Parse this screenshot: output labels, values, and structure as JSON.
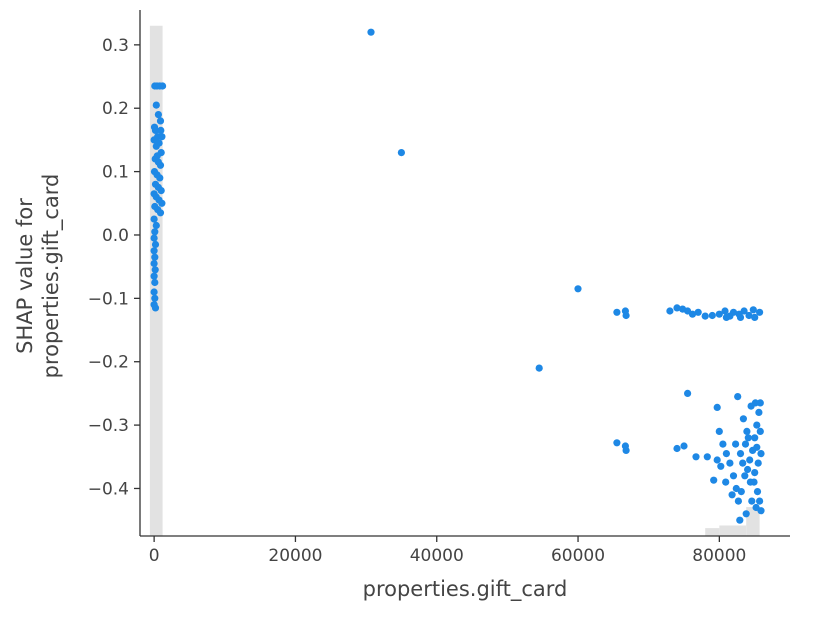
{
  "chart_data": {
    "type": "scatter",
    "title": "",
    "xlabel": "properties.gift_card",
    "ylabel_lines": [
      "SHAP value for",
      "properties.gift_card"
    ],
    "xlim": [
      -2000,
      90000
    ],
    "ylim": [
      -0.475,
      0.355
    ],
    "x_ticks": [
      0,
      20000,
      40000,
      60000,
      80000
    ],
    "x_tick_labels": [
      "0",
      "20000",
      "40000",
      "60000",
      "80000"
    ],
    "y_ticks": [
      0.3,
      0.2,
      0.1,
      0.0,
      -0.1,
      -0.2,
      -0.3,
      -0.4
    ],
    "y_tick_labels": [
      "0.3",
      "0.2",
      "0.1",
      "0.0",
      "−0.1",
      "−0.2",
      "−0.3",
      "−0.4"
    ],
    "grid": false,
    "legend": "none",
    "point_color": "#1e88e5",
    "histogram_color": "#e2e2e2",
    "histogram": [
      {
        "x0": -600,
        "x1": 1200,
        "height_fraction": 0.97
      },
      {
        "x0": 78000,
        "x1": 80000,
        "height_fraction": 0.015
      },
      {
        "x0": 80000,
        "x1": 83800,
        "height_fraction": 0.02
      },
      {
        "x0": 83800,
        "x1": 85700,
        "height_fraction": 0.055
      }
    ],
    "series": [
      {
        "points": [
          [
            100,
            0.235
          ],
          [
            400,
            0.235
          ],
          [
            800,
            0.235
          ],
          [
            1200,
            0.235
          ],
          [
            300,
            0.205
          ],
          [
            600,
            0.19
          ],
          [
            900,
            0.18
          ],
          [
            200,
            0.165
          ],
          [
            500,
            0.155
          ],
          [
            1100,
            0.155
          ],
          [
            0,
            0.15
          ],
          [
            700,
            0.145
          ],
          [
            300,
            0.14
          ],
          [
            1000,
            0.13
          ],
          [
            150,
            0.12
          ],
          [
            600,
            0.115
          ],
          [
            900,
            0.11
          ],
          [
            50,
            0.1
          ],
          [
            400,
            0.095
          ],
          [
            800,
            0.09
          ],
          [
            200,
            0.08
          ],
          [
            600,
            0.075
          ],
          [
            1000,
            0.07
          ],
          [
            0,
            0.065
          ],
          [
            300,
            0.06
          ],
          [
            700,
            0.055
          ],
          [
            1100,
            0.05
          ],
          [
            100,
            0.045
          ],
          [
            500,
            0.04
          ],
          [
            900,
            0.035
          ],
          [
            0,
            0.025
          ],
          [
            300,
            0.015
          ],
          [
            100,
            0.005
          ],
          [
            0,
            -0.005
          ],
          [
            200,
            -0.015
          ],
          [
            0,
            -0.025
          ],
          [
            100,
            -0.035
          ],
          [
            0,
            -0.045
          ],
          [
            150,
            -0.055
          ],
          [
            0,
            -0.065
          ],
          [
            100,
            -0.075
          ],
          [
            0,
            -0.09
          ],
          [
            100,
            -0.1
          ],
          [
            0,
            -0.11
          ],
          [
            200,
            -0.115
          ],
          [
            50,
            0.17
          ],
          [
            950,
            0.165
          ],
          [
            450,
            0.125
          ],
          [
            30700,
            0.32
          ],
          [
            35000,
            0.13
          ],
          [
            54500,
            -0.21
          ],
          [
            60000,
            -0.085
          ],
          [
            65500,
            -0.122
          ],
          [
            66700,
            -0.12
          ],
          [
            66800,
            -0.127
          ],
          [
            65500,
            -0.328
          ],
          [
            66700,
            -0.333
          ],
          [
            66800,
            -0.34
          ],
          [
            73000,
            -0.12
          ],
          [
            74000,
            -0.115
          ],
          [
            74800,
            -0.117
          ],
          [
            75500,
            -0.12
          ],
          [
            76200,
            -0.125
          ],
          [
            77000,
            -0.122
          ],
          [
            78000,
            -0.128
          ],
          [
            79000,
            -0.127
          ],
          [
            80000,
            -0.125
          ],
          [
            80800,
            -0.12
          ],
          [
            81500,
            -0.128
          ],
          [
            82000,
            -0.122
          ],
          [
            82800,
            -0.125
          ],
          [
            83500,
            -0.12
          ],
          [
            84200,
            -0.127
          ],
          [
            85000,
            -0.13
          ],
          [
            85700,
            -0.122
          ],
          [
            84800,
            -0.118
          ],
          [
            83000,
            -0.13
          ],
          [
            81000,
            -0.13
          ],
          [
            74000,
            -0.337
          ],
          [
            75000,
            -0.333
          ],
          [
            76700,
            -0.35
          ],
          [
            78300,
            -0.35
          ],
          [
            75500,
            -0.25
          ],
          [
            79200,
            -0.387
          ],
          [
            79700,
            -0.272
          ],
          [
            80000,
            -0.31
          ],
          [
            80500,
            -0.33
          ],
          [
            81000,
            -0.345
          ],
          [
            81500,
            -0.36
          ],
          [
            82000,
            -0.38
          ],
          [
            82400,
            -0.4
          ],
          [
            82700,
            -0.42
          ],
          [
            83000,
            -0.345
          ],
          [
            83300,
            -0.36
          ],
          [
            83600,
            -0.38
          ],
          [
            84000,
            -0.37
          ],
          [
            84300,
            -0.355
          ],
          [
            84700,
            -0.34
          ],
          [
            85000,
            -0.32
          ],
          [
            85300,
            -0.3
          ],
          [
            85600,
            -0.28
          ],
          [
            85800,
            -0.265
          ],
          [
            85100,
            -0.265
          ],
          [
            82600,
            -0.255
          ],
          [
            83400,
            -0.29
          ],
          [
            83900,
            -0.31
          ],
          [
            84500,
            -0.27
          ],
          [
            84900,
            -0.39
          ],
          [
            85400,
            -0.405
          ],
          [
            85700,
            -0.42
          ],
          [
            85900,
            -0.435
          ],
          [
            85200,
            -0.43
          ],
          [
            84600,
            -0.42
          ],
          [
            83800,
            -0.44
          ],
          [
            82900,
            -0.45
          ],
          [
            81800,
            -0.41
          ],
          [
            80900,
            -0.39
          ],
          [
            80200,
            -0.365
          ],
          [
            79700,
            -0.355
          ],
          [
            85900,
            -0.345
          ],
          [
            85500,
            -0.36
          ],
          [
            85000,
            -0.375
          ],
          [
            84400,
            -0.39
          ],
          [
            83100,
            -0.405
          ],
          [
            82300,
            -0.33
          ],
          [
            85800,
            -0.31
          ],
          [
            85300,
            -0.335
          ],
          [
            84100,
            -0.32
          ],
          [
            83700,
            -0.33
          ]
        ]
      }
    ]
  }
}
